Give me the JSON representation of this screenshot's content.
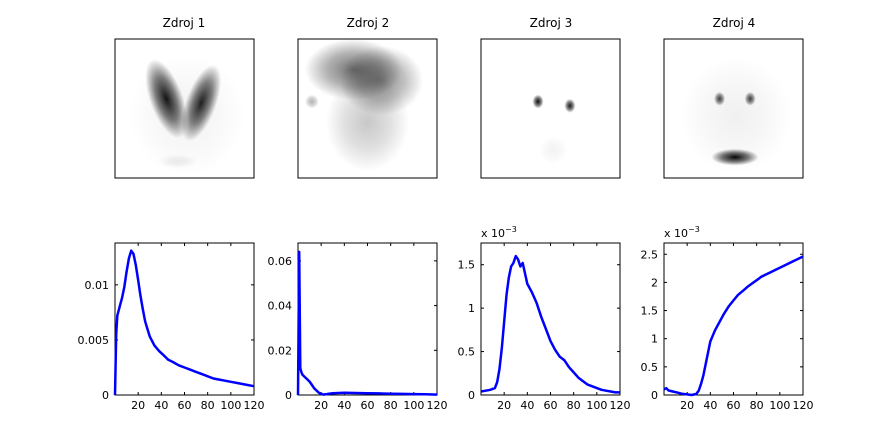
{
  "chart_data": [
    {
      "id": "src1-image",
      "type": "heatmap",
      "title": "Zdroj 1",
      "blobs": [
        {
          "x": 0.37,
          "y": 0.43,
          "rx": 0.12,
          "ry": 0.3,
          "rot": -20,
          "v": 0.92
        },
        {
          "x": 0.62,
          "y": 0.46,
          "rx": 0.11,
          "ry": 0.29,
          "rot": 20,
          "v": 0.88
        },
        {
          "x": 0.45,
          "y": 0.88,
          "rx": 0.14,
          "ry": 0.05,
          "rot": 0,
          "v": 0.08
        },
        {
          "x": 0.52,
          "y": 0.55,
          "rx": 0.42,
          "ry": 0.44,
          "rot": 0,
          "v": 0.05
        }
      ]
    },
    {
      "id": "src2-image",
      "type": "heatmap",
      "title": "Zdroj 2",
      "blobs": [
        {
          "x": 0.4,
          "y": 0.22,
          "rx": 0.35,
          "ry": 0.22,
          "rot": 0,
          "v": 0.55
        },
        {
          "x": 0.6,
          "y": 0.3,
          "rx": 0.3,
          "ry": 0.25,
          "rot": 0,
          "v": 0.45
        },
        {
          "x": 0.5,
          "y": 0.6,
          "rx": 0.3,
          "ry": 0.35,
          "rot": 0,
          "v": 0.22
        },
        {
          "x": 0.1,
          "y": 0.45,
          "rx": 0.05,
          "ry": 0.05,
          "rot": 0,
          "v": 0.3
        }
      ]
    },
    {
      "id": "src3-image",
      "type": "heatmap",
      "title": "Zdroj 3",
      "blobs": [
        {
          "x": 0.41,
          "y": 0.45,
          "rx": 0.04,
          "ry": 0.05,
          "rot": 0,
          "v": 0.95
        },
        {
          "x": 0.64,
          "y": 0.48,
          "rx": 0.04,
          "ry": 0.05,
          "rot": 0,
          "v": 0.9
        },
        {
          "x": 0.52,
          "y": 0.8,
          "rx": 0.1,
          "ry": 0.1,
          "rot": 0,
          "v": 0.05
        }
      ]
    },
    {
      "id": "src4-image",
      "type": "heatmap",
      "title": "Zdroj 4",
      "blobs": [
        {
          "x": 0.4,
          "y": 0.43,
          "rx": 0.04,
          "ry": 0.05,
          "rot": 0,
          "v": 0.75
        },
        {
          "x": 0.62,
          "y": 0.43,
          "rx": 0.04,
          "ry": 0.05,
          "rot": 0,
          "v": 0.75
        },
        {
          "x": 0.51,
          "y": 0.85,
          "rx": 0.17,
          "ry": 0.06,
          "rot": 0,
          "v": 0.98
        },
        {
          "x": 0.52,
          "y": 0.55,
          "rx": 0.4,
          "ry": 0.42,
          "rot": 0,
          "v": 0.06
        }
      ]
    },
    {
      "id": "src1-curve",
      "type": "line",
      "xlim": [
        0,
        120
      ],
      "ylim": [
        0,
        0.0138
      ],
      "xticks": [
        20,
        40,
        60,
        80,
        100,
        120
      ],
      "xtick_labels": [
        "20",
        "40",
        "60",
        "80",
        "100",
        "120"
      ],
      "yticks": [
        0,
        0.005,
        0.01
      ],
      "ytick_labels": [
        "0",
        "0.005",
        "0.01"
      ],
      "exponent": "",
      "color": "#0000ff",
      "series": [
        {
          "x": [
            0,
            1,
            2,
            4,
            6,
            8,
            10,
            12,
            14,
            16,
            18,
            20,
            22,
            24,
            26,
            28,
            30,
            34,
            38,
            42,
            46,
            50,
            55,
            60,
            65,
            70,
            75,
            80,
            85,
            90,
            95,
            100,
            105,
            110,
            115,
            120
          ],
          "y": [
            0.0,
            0.0055,
            0.0072,
            0.008,
            0.0088,
            0.0098,
            0.0112,
            0.0124,
            0.0131,
            0.0128,
            0.0118,
            0.0104,
            0.009,
            0.0078,
            0.0067,
            0.006,
            0.0053,
            0.0045,
            0.004,
            0.0036,
            0.0032,
            0.003,
            0.0027,
            0.0025,
            0.0023,
            0.0021,
            0.0019,
            0.0017,
            0.0015,
            0.0014,
            0.0013,
            0.0012,
            0.0011,
            0.001,
            0.0009,
            0.0008
          ]
        }
      ]
    },
    {
      "id": "src2-curve",
      "type": "line",
      "xlim": [
        0,
        120
      ],
      "ylim": [
        0,
        0.068
      ],
      "xticks": [
        20,
        40,
        60,
        80,
        100,
        120
      ],
      "xtick_labels": [
        "20",
        "40",
        "60",
        "80",
        "100",
        "120"
      ],
      "yticks": [
        0,
        0.02,
        0.04,
        0.06
      ],
      "ytick_labels": [
        "0",
        "0.02",
        "0.04",
        "0.06"
      ],
      "exponent": "",
      "color": "#0000ff",
      "series": [
        {
          "x": [
            0,
            1,
            2,
            3,
            4,
            6,
            8,
            10,
            12,
            14,
            16,
            18,
            20,
            22,
            24,
            26,
            30,
            40,
            50,
            60,
            70,
            80,
            90,
            100,
            110,
            120
          ],
          "y": [
            0.0,
            0.064,
            0.012,
            0.01,
            0.009,
            0.008,
            0.007,
            0.006,
            0.0045,
            0.003,
            0.002,
            0.001,
            0.0005,
            0.0002,
            0.0003,
            0.0005,
            0.0008,
            0.001,
            0.0009,
            0.0008,
            0.0007,
            0.0006,
            0.0005,
            0.0004,
            0.0003,
            0.0002
          ]
        }
      ]
    },
    {
      "id": "src3-curve",
      "type": "line",
      "xlim": [
        0,
        120
      ],
      "ylim": [
        0,
        0.00175
      ],
      "xticks": [
        20,
        40,
        60,
        80,
        100,
        120
      ],
      "xtick_labels": [
        "20",
        "40",
        "60",
        "80",
        "100",
        "120"
      ],
      "yticks": [
        0,
        0.0005,
        0.001,
        0.0015
      ],
      "ytick_labels": [
        "0",
        "0.5",
        "1",
        "1.5"
      ],
      "exponent": "-3",
      "color": "#0000ff",
      "series": [
        {
          "x": [
            0,
            4,
            8,
            12,
            14,
            16,
            18,
            20,
            22,
            24,
            26,
            28,
            30,
            32,
            34,
            36,
            38,
            40,
            44,
            48,
            52,
            56,
            60,
            64,
            68,
            72,
            76,
            80,
            84,
            88,
            92,
            96,
            100,
            104,
            108,
            112,
            116,
            120
          ],
          "y": [
            4e-05,
            5e-05,
            6e-05,
            8e-05,
            0.00015,
            0.0003,
            0.00055,
            0.00085,
            0.00115,
            0.00135,
            0.00148,
            0.00152,
            0.0016,
            0.00156,
            0.00148,
            0.00152,
            0.0014,
            0.00128,
            0.00118,
            0.00106,
            0.0009,
            0.00076,
            0.00062,
            0.00052,
            0.00044,
            0.0004,
            0.00032,
            0.00026,
            0.0002,
            0.00016,
            0.00012,
            0.0001,
            8e-05,
            6e-05,
            5e-05,
            4e-05,
            3e-05,
            3e-05
          ]
        }
      ]
    },
    {
      "id": "src4-curve",
      "type": "line",
      "xlim": [
        0,
        120
      ],
      "ylim": [
        0,
        0.0027
      ],
      "xticks": [
        20,
        40,
        60,
        80,
        100,
        120
      ],
      "xtick_labels": [
        "20",
        "40",
        "60",
        "80",
        "100",
        "120"
      ],
      "yticks": [
        0,
        0.0005,
        0.001,
        0.0015,
        0.002,
        0.0025
      ],
      "ytick_labels": [
        "0",
        "0.5",
        "1",
        "1.5",
        "2",
        "2.5"
      ],
      "exponent": "-3",
      "color": "#0000ff",
      "series": [
        {
          "x": [
            0,
            2,
            4,
            8,
            12,
            16,
            20,
            24,
            28,
            30,
            32,
            34,
            36,
            38,
            40,
            44,
            48,
            52,
            56,
            60,
            64,
            68,
            72,
            76,
            80,
            84,
            88,
            92,
            96,
            100,
            104,
            108,
            112,
            116,
            120
          ],
          "y": [
            0.0001,
            0.00012,
            8e-05,
            6e-05,
            4e-05,
            2e-05,
            1e-05,
            0.0,
            2e-05,
            8e-05,
            0.0002,
            0.00035,
            0.00055,
            0.00075,
            0.00095,
            0.00115,
            0.0013,
            0.00145,
            0.00158,
            0.00168,
            0.00178,
            0.00185,
            0.00192,
            0.00198,
            0.00204,
            0.0021,
            0.00214,
            0.00218,
            0.00222,
            0.00226,
            0.0023,
            0.00234,
            0.00238,
            0.00242,
            0.00246
          ]
        }
      ]
    }
  ]
}
